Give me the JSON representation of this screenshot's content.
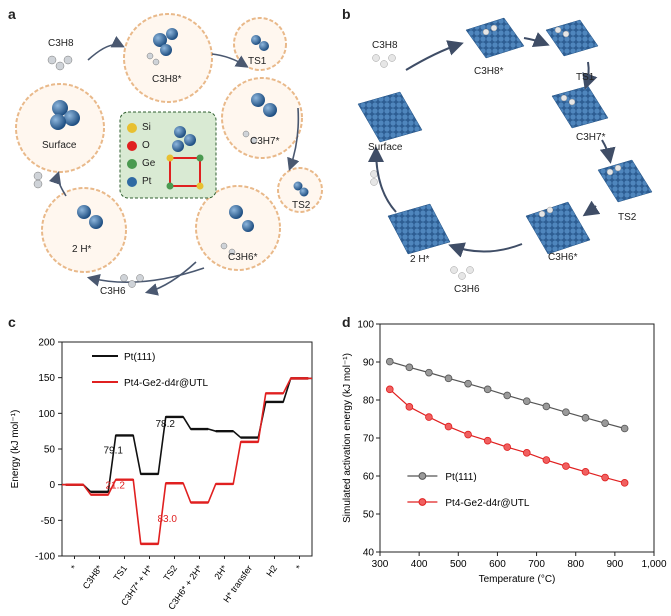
{
  "panels": {
    "a": "a",
    "b": "b",
    "c": "c",
    "d": "d"
  },
  "panel_a": {
    "reactant": "C3H8",
    "states": [
      "C3H8*",
      "TS1",
      "C3H7*",
      "TS2",
      "C3H6*",
      "2 H*",
      "Surface"
    ],
    "product": "C3H6",
    "legend": [
      "Si",
      "O",
      "Ge",
      "Pt"
    ],
    "legend_colors": [
      "#e8c030",
      "#e02020",
      "#4a9a50",
      "#2f6aa3"
    ]
  },
  "panel_b": {
    "reactant": "C3H8",
    "states": [
      "C3H8*",
      "TS1",
      "C3H7*",
      "TS2",
      "C3H6*",
      "2 H*",
      "Surface"
    ],
    "product": "C3H6"
  },
  "chart_data": [
    {
      "panel": "c",
      "type": "line",
      "ylabel": "Energy (kJ mol⁻¹)",
      "ylim": [
        -100,
        200
      ],
      "yticks": [
        -100,
        -50,
        0,
        50,
        100,
        150,
        200
      ],
      "categories": [
        "*",
        "C3H8*",
        "TS1",
        "C3H7* + H*",
        "TS2",
        "C3H6* + 2H*",
        "2H*",
        "H* transfer",
        "H2",
        "*"
      ],
      "series": [
        {
          "name": "Pt(111)",
          "color": "#111111",
          "levels": [
            0,
            -10,
            69,
            15,
            95,
            78,
            75,
            66,
            116,
            149
          ]
        },
        {
          "name": "Pt4-Ge2-d4r@UTL",
          "color": "#e02020",
          "levels": [
            0,
            -14,
            7,
            -83,
            2,
            -25,
            1,
            60,
            128,
            149
          ]
        }
      ],
      "annotations": [
        {
          "text": "79.1",
          "color": "#111111"
        },
        {
          "text": "78.2",
          "color": "#111111"
        },
        {
          "text": "21.2",
          "color": "#e02020"
        },
        {
          "text": "83.0",
          "color": "#e02020"
        }
      ]
    },
    {
      "panel": "d",
      "type": "line",
      "xlabel": "Temperature (°C)",
      "ylabel": "Simulated activation energy (kJ mol⁻¹)",
      "xlim": [
        300,
        1000
      ],
      "ylim": [
        40,
        100
      ],
      "xticks": [
        300,
        400,
        500,
        600,
        700,
        800,
        900,
        1000
      ],
      "xtick_labels": [
        "300",
        "400",
        "500",
        "600",
        "700",
        "800",
        "900",
        "1,000"
      ],
      "yticks": [
        40,
        50,
        60,
        70,
        80,
        90,
        100
      ],
      "x": [
        325,
        375,
        425,
        475,
        525,
        575,
        625,
        675,
        725,
        775,
        825,
        875,
        925
      ],
      "series": [
        {
          "name": "Pt(111)",
          "color": "#555555",
          "values": [
            90.1,
            88.6,
            87.2,
            85.7,
            84.3,
            82.8,
            81.2,
            79.7,
            78.3,
            76.8,
            75.3,
            73.9,
            72.5
          ]
        },
        {
          "name": "Pt4-Ge2-d4r@UTL",
          "color": "#e02020",
          "values": [
            82.8,
            78.2,
            75.5,
            73.0,
            70.9,
            69.3,
            67.6,
            66.1,
            64.2,
            62.6,
            61.1,
            59.6,
            58.2
          ]
        }
      ]
    }
  ]
}
